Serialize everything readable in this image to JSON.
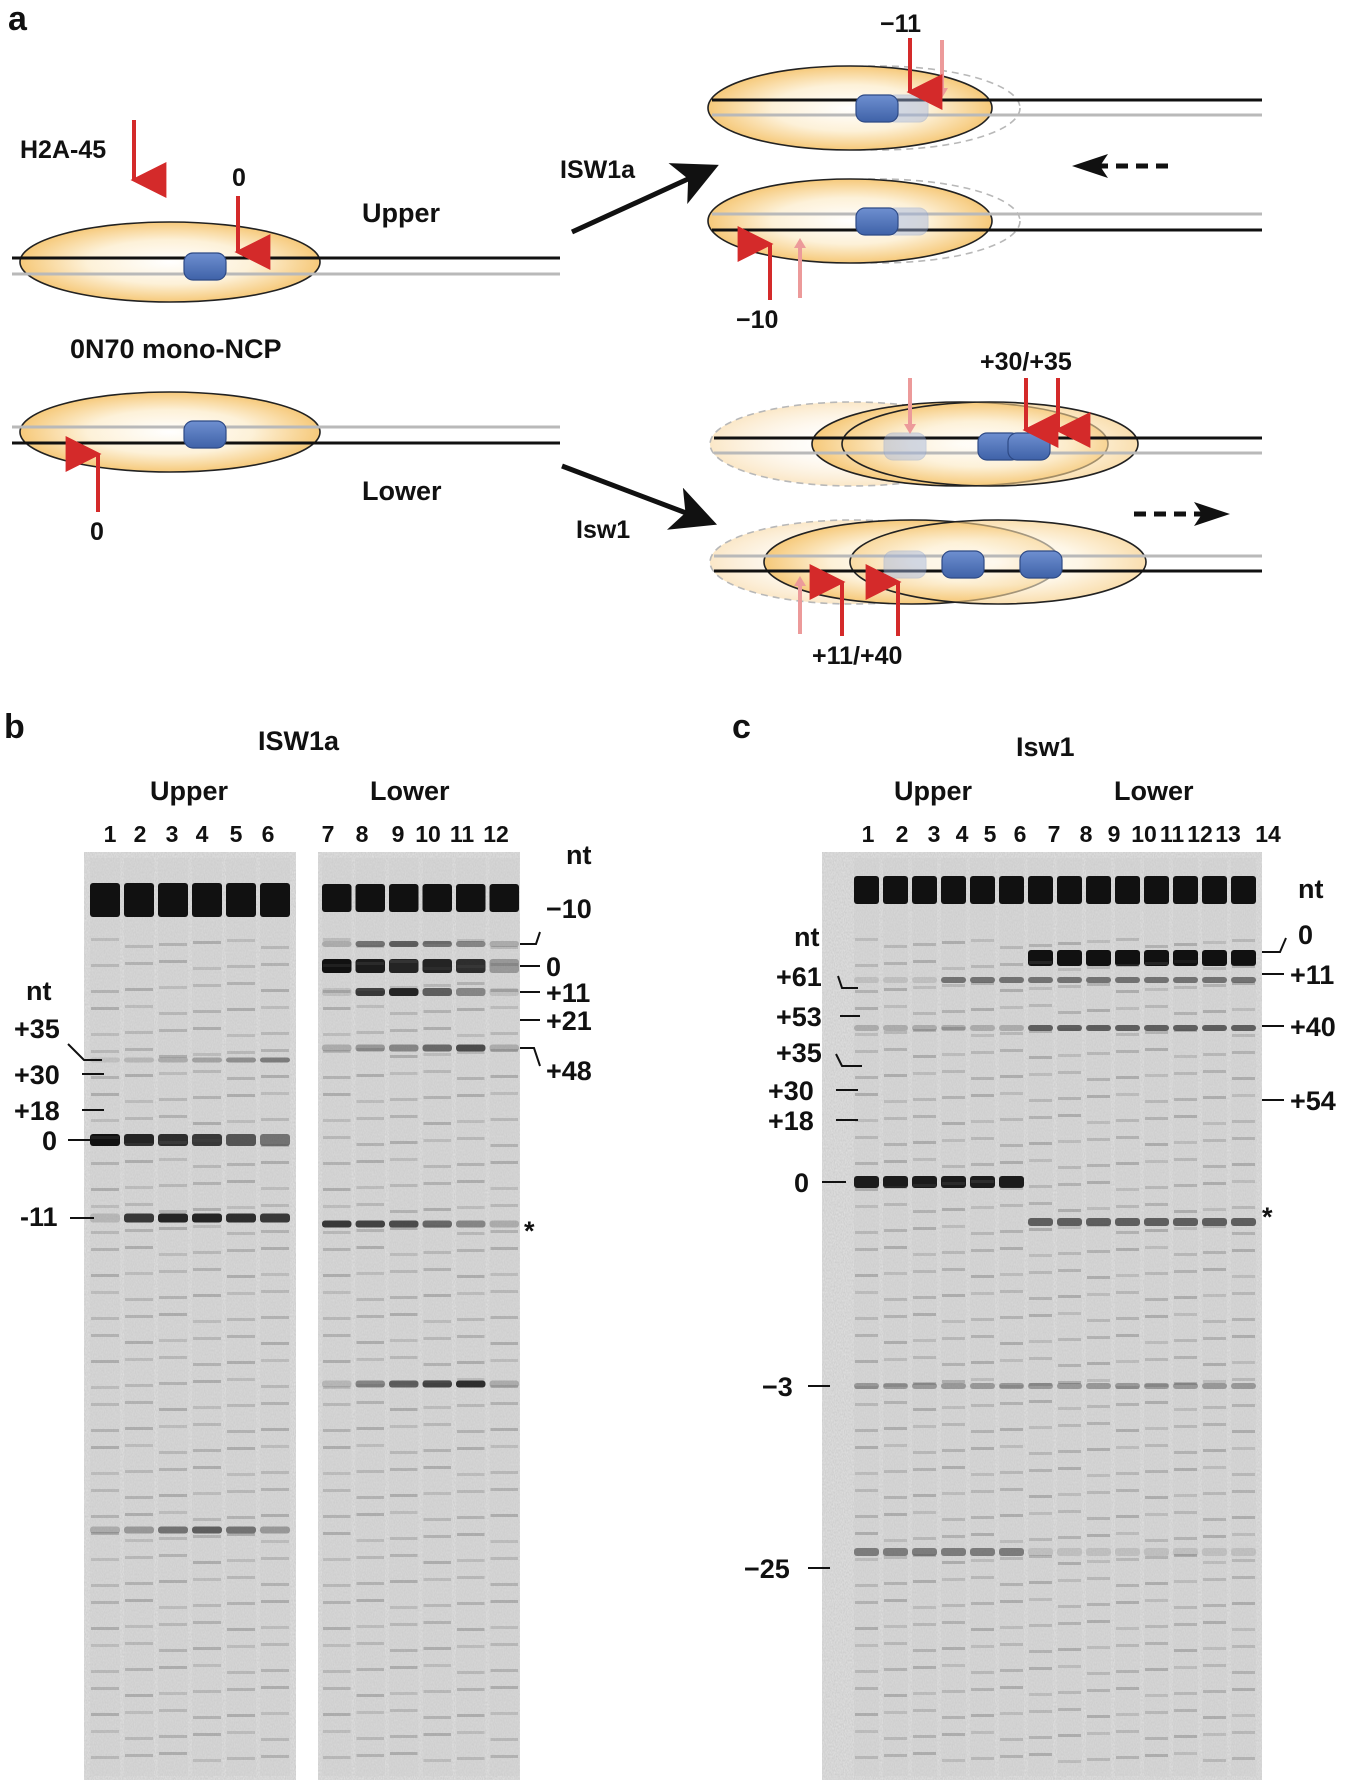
{
  "panel_a": {
    "letter": "a",
    "h2a_label": "H2A-45",
    "upper_label": "Upper",
    "lower_label": "Lower",
    "ncp_label": "0N70 mono-NCP",
    "zero_upper": "0",
    "zero_lower": "0",
    "isw1a_label": "ISW1a",
    "isw1_label": "Isw1",
    "minus11": "−11",
    "minus10": "−10",
    "plus30_35": "+30/+35",
    "plus11_40": "+11/+40"
  },
  "panel_b": {
    "letter": "b",
    "title": "ISW1a",
    "upper_label": "Upper",
    "lower_label": "Lower",
    "lane_numbers": [
      "1",
      "2",
      "3",
      "4",
      "5",
      "6",
      "7",
      "8",
      "9",
      "10",
      "11",
      "12"
    ],
    "nt_right": "nt",
    "nt_left": "nt",
    "right_markers": [
      "−10",
      "0",
      "+11",
      "+21",
      "+48"
    ],
    "left_markers": [
      "+35",
      "+30",
      "+18",
      "0",
      "-11"
    ],
    "asterisk": "*"
  },
  "panel_c": {
    "letter": "c",
    "title": "Isw1",
    "upper_label": "Upper",
    "lower_label": "Lower",
    "lane_numbers": [
      "1",
      "2",
      "3",
      "4",
      "5",
      "6",
      "7",
      "8",
      "9",
      "10",
      "11",
      "12",
      "13",
      "14"
    ],
    "nt_right": "nt",
    "nt_left": "nt",
    "right_markers": [
      "0",
      "+11",
      "+40",
      "+54"
    ],
    "left_markers": [
      "+61",
      "+53",
      "+35",
      "+30",
      "+18",
      "0",
      "−3",
      "−25"
    ],
    "asterisk": "*"
  },
  "colors": {
    "arrow_red": "#d42a2a",
    "arrow_pink": "#ec9a9a",
    "nucleosome_fill": "#fbe7bf",
    "histone_blue": "#4f74b8",
    "dna_black": "#111111",
    "dna_grey": "#b9b9b9"
  }
}
